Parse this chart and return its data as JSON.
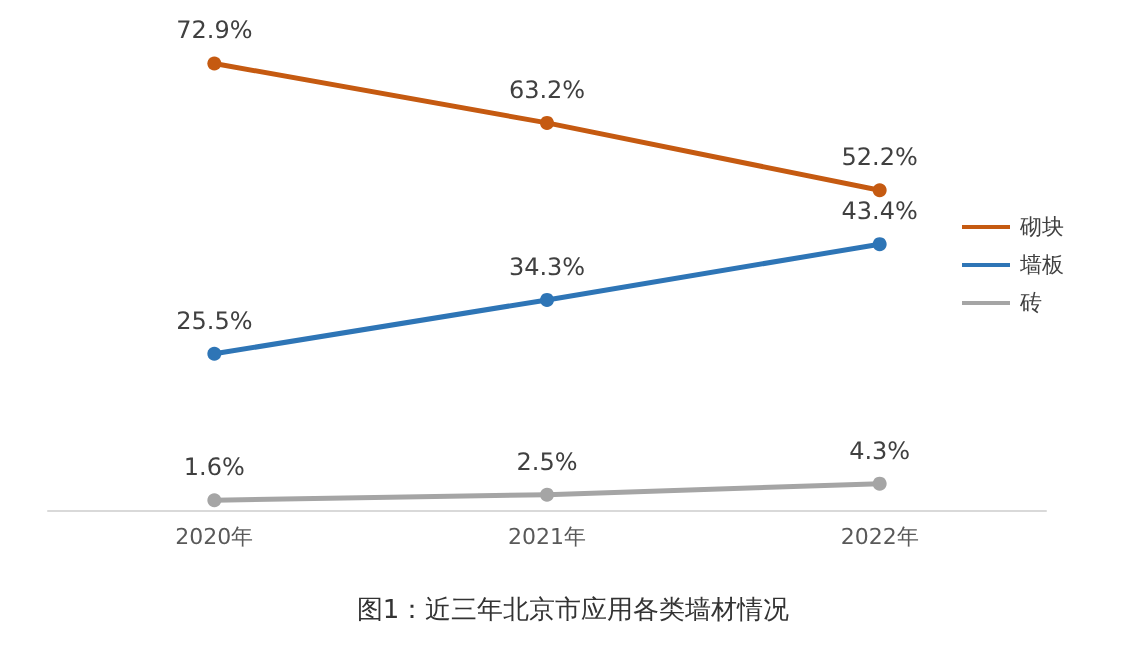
{
  "chart_data": {
    "type": "line",
    "title": "图1：近三年北京市应用各类墙材情况",
    "categories": [
      "2020年",
      "2021年",
      "2022年"
    ],
    "series": [
      {
        "name": "砌块",
        "color": "#c55a11",
        "values": [
          72.9,
          63.2,
          52.2
        ],
        "value_labels": [
          "72.9%",
          "63.2%",
          "52.2%"
        ]
      },
      {
        "name": "墙板",
        "color": "#2e75b6",
        "values": [
          25.5,
          34.3,
          43.4
        ],
        "value_labels": [
          "25.5%",
          "34.3%",
          "43.4%"
        ]
      },
      {
        "name": "砖",
        "color": "#a5a5a5",
        "values": [
          1.6,
          2.5,
          4.3
        ],
        "value_labels": [
          "1.6%",
          "2.5%",
          "4.3%"
        ]
      }
    ],
    "tick_labels": "x",
    "legend": "right",
    "marker": "circle",
    "line_style": "solid",
    "grid": false
  }
}
